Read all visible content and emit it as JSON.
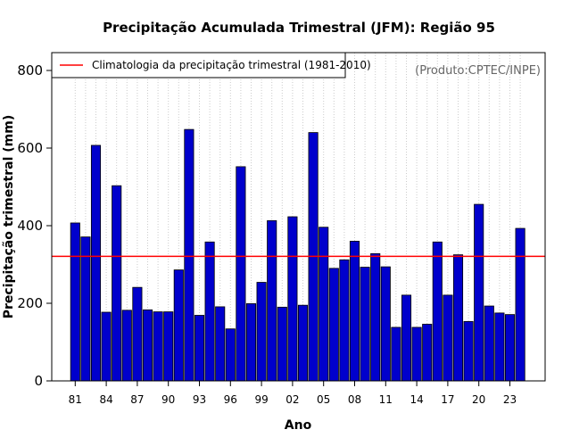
{
  "chart_data": {
    "type": "bar",
    "title": "Precipitação Acumulada Trimestral (JFM): Região 95",
    "xlabel": "Ano",
    "ylabel": "Precipitação trimestral (mm)",
    "ylim": [
      0,
      850
    ],
    "yticks": [
      0,
      200,
      400,
      600,
      800
    ],
    "grid": "vertical dotted",
    "categories": [
      "1981",
      "1982",
      "1983",
      "1984",
      "1985",
      "1986",
      "1987",
      "1988",
      "1989",
      "1990",
      "1991",
      "1992",
      "1993",
      "1994",
      "1995",
      "1996",
      "1997",
      "1998",
      "1999",
      "2000",
      "2001",
      "2002",
      "2003",
      "2004",
      "2005",
      "2006",
      "2007",
      "2008",
      "2009",
      "2010",
      "2011",
      "2012",
      "2013",
      "2014",
      "2015",
      "2016",
      "2017",
      "2018",
      "2019",
      "2020",
      "2021",
      "2022",
      "2023",
      "2024"
    ],
    "values": [
      407,
      371,
      607,
      177,
      503,
      182,
      241,
      183,
      178,
      178,
      286,
      648,
      169,
      358,
      191,
      134,
      552,
      199,
      254,
      413,
      190,
      423,
      195,
      640,
      396,
      290,
      312,
      360,
      293,
      328,
      294,
      138,
      221,
      138,
      146,
      358,
      221,
      325,
      153,
      455,
      193,
      175,
      171,
      393
    ],
    "xtick_labels": [
      "81",
      "84",
      "87",
      "90",
      "93",
      "96",
      "99",
      "02",
      "05",
      "08",
      "11",
      "14",
      "17",
      "20",
      "23"
    ],
    "climatology": 321,
    "legend": {
      "label": "Climatologia da precipitação trimestral (1981-2010)",
      "position": "top-left"
    },
    "annotation": "(Produto:CPTEC/INPE)",
    "colors": {
      "bar_fill": "#0000cc",
      "bar_stroke": "#000000",
      "climatology_line": "#ff0000",
      "grid": "#cccccc"
    }
  }
}
